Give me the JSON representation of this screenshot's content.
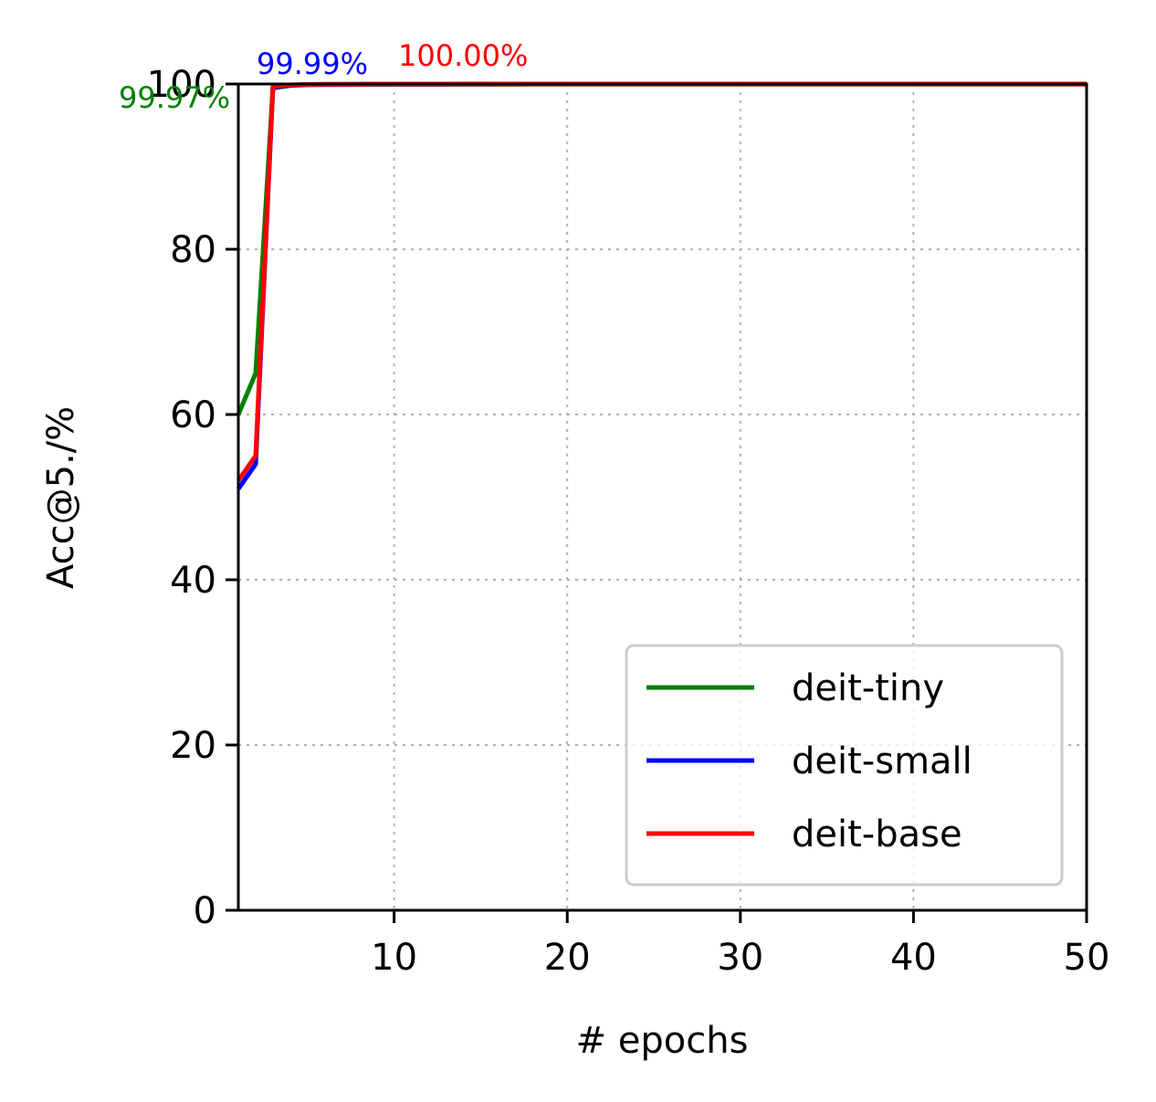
{
  "chart_data": {
    "type": "line",
    "title": "",
    "xlabel": "# epochs",
    "ylabel": "Acc@5./%",
    "xlim": [
      1,
      50
    ],
    "ylim": [
      0,
      100
    ],
    "xticks": [
      10,
      20,
      30,
      40,
      50
    ],
    "yticks": [
      0,
      20,
      40,
      60,
      80,
      100
    ],
    "grid": true,
    "legend_position": "lower-right",
    "x": [
      1,
      2,
      3,
      4,
      5,
      6,
      7,
      8,
      9,
      10,
      11,
      12,
      13,
      14,
      15,
      16,
      17,
      18,
      19,
      20,
      21,
      22,
      23,
      24,
      25,
      26,
      27,
      28,
      29,
      30,
      31,
      32,
      33,
      34,
      35,
      36,
      37,
      38,
      39,
      40,
      41,
      42,
      43,
      44,
      45,
      46,
      47,
      48,
      49,
      50
    ],
    "series": [
      {
        "name": "deit-tiny",
        "color": "#008000",
        "values": [
          60.0,
          65.0,
          99.5,
          99.8,
          99.9,
          99.92,
          99.93,
          99.94,
          99.95,
          99.95,
          99.96,
          99.96,
          99.96,
          99.96,
          99.96,
          99.96,
          99.96,
          99.97,
          99.97,
          99.97,
          99.97,
          99.97,
          99.97,
          99.97,
          99.97,
          99.97,
          99.97,
          99.97,
          99.97,
          99.97,
          99.97,
          99.97,
          99.97,
          99.97,
          99.97,
          99.97,
          99.97,
          99.97,
          99.97,
          99.97,
          99.97,
          99.97,
          99.97,
          99.97,
          99.97,
          99.97,
          99.97,
          99.97,
          99.97,
          99.97
        ],
        "annotation": "99.97%"
      },
      {
        "name": "deit-small",
        "color": "#0000ff",
        "values": [
          51.0,
          54.0,
          99.6,
          99.85,
          99.93,
          99.95,
          99.96,
          99.97,
          99.97,
          99.98,
          99.98,
          99.98,
          99.98,
          99.98,
          99.98,
          99.99,
          99.99,
          99.99,
          99.99,
          99.99,
          99.99,
          99.99,
          99.99,
          99.99,
          99.99,
          99.99,
          99.99,
          99.99,
          99.99,
          99.99,
          99.99,
          99.99,
          99.99,
          99.99,
          99.99,
          99.99,
          99.99,
          99.99,
          99.99,
          99.99,
          99.99,
          99.99,
          99.99,
          99.99,
          99.99,
          99.99,
          99.99,
          99.99,
          99.99,
          99.99
        ],
        "annotation": "99.99%"
      },
      {
        "name": "deit-base",
        "color": "#ff0000",
        "values": [
          52.0,
          55.0,
          99.7,
          99.9,
          99.95,
          99.97,
          99.98,
          99.98,
          99.99,
          99.99,
          99.99,
          99.99,
          99.99,
          100.0,
          100.0,
          100.0,
          100.0,
          100.0,
          100.0,
          100.0,
          100.0,
          100.0,
          100.0,
          100.0,
          100.0,
          100.0,
          100.0,
          100.0,
          100.0,
          100.0,
          100.0,
          100.0,
          100.0,
          100.0,
          100.0,
          100.0,
          100.0,
          100.0,
          100.0,
          100.0,
          100.0,
          100.0,
          100.0,
          100.0,
          100.0,
          100.0,
          100.0,
          100.0,
          100.0,
          100.0
        ],
        "annotation": "100.00%"
      }
    ]
  }
}
